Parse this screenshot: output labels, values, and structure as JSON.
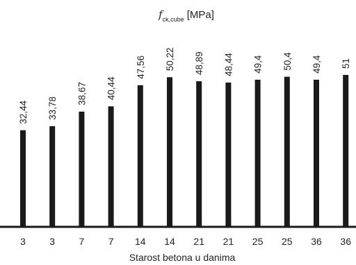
{
  "chart_data": {
    "type": "bar",
    "title": {
      "symbol": "f",
      "subscript": "ck,cube",
      "unit": " [MPa]"
    },
    "xlabel": "Starost betona u danima",
    "ylabel": "",
    "categories": [
      "3",
      "3",
      "7",
      "7",
      "14",
      "14",
      "21",
      "21",
      "25",
      "25",
      "36",
      "36"
    ],
    "values": [
      32.44,
      33.78,
      38.67,
      40.44,
      47.56,
      50.22,
      48.89,
      48.44,
      49.4,
      50.4,
      49.4,
      51
    ],
    "value_labels": [
      "32,44",
      "33,78",
      "38,67",
      "40,44",
      "47,56",
      "50,22",
      "48,89",
      "48,44",
      "49,4",
      "50,4",
      "49,4",
      "51"
    ],
    "ylim": [
      0,
      51
    ],
    "grid": false,
    "bar_color": "#1a1a1a"
  }
}
